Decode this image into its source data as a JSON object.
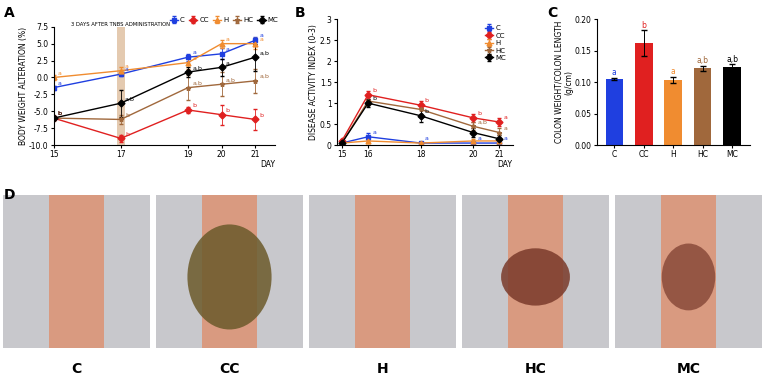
{
  "chart_data": [
    {
      "type": "line",
      "panel_label": "A",
      "x_label": "DAY",
      "y_label": "BODY WEIGHT ALTERATION (%)",
      "x": [
        15,
        17,
        19,
        20,
        21
      ],
      "xlim": [
        15,
        21.6
      ],
      "xticks": [
        15,
        17,
        19,
        20,
        21
      ],
      "ylim": [
        -10,
        7.5
      ],
      "yticks": [
        {
          "value": -10,
          "label": "-10.0"
        },
        {
          "value": -7.5,
          "label": "-7.5"
        },
        {
          "value": -5,
          "label": "-5.0"
        },
        {
          "value": -2.5,
          "label": "-2.5"
        },
        {
          "value": 0,
          "label": "0.0"
        },
        {
          "value": 2.5,
          "label": "2.5"
        },
        {
          "value": 5,
          "label": "5.0"
        },
        {
          "value": 7.5,
          "label": "7.5"
        }
      ],
      "legend": "lower right",
      "annotations": [
        {
          "text": "3 DAYS AFTER TNBS ADMINISTRATION",
          "x": 17
        }
      ],
      "series": [
        {
          "name": "C",
          "color": "#1f3fe0",
          "marker": "square",
          "values": [
            -1.5,
            0.5,
            3.0,
            3.5,
            5.5
          ],
          "errors": [
            0.3,
            0.3,
            0.5,
            0.8,
            0.5
          ],
          "letters": [
            "a",
            "a",
            "a",
            "a",
            "a"
          ]
        },
        {
          "name": "CC",
          "color": "#e02020",
          "marker": "diamond",
          "values": [
            -6.0,
            -9.0,
            -4.8,
            -5.5,
            -6.2
          ],
          "errors": [
            0.3,
            0.5,
            0.5,
            1.5,
            1.5
          ],
          "letters": [
            "b",
            "b",
            "b",
            "b",
            "b"
          ]
        },
        {
          "name": "H",
          "color": "#f08c30",
          "marker": "triangle",
          "values": [
            0.0,
            1.0,
            2.2,
            5.0,
            5.0
          ],
          "errors": [
            0.3,
            0.5,
            1.0,
            0.6,
            0.8
          ],
          "letters": [
            "a",
            "a",
            "a",
            "a",
            "a"
          ]
        },
        {
          "name": "HC",
          "color": "#a0683c",
          "marker": "star",
          "values": [
            -6.0,
            -6.2,
            -1.5,
            -1.0,
            -0.5
          ],
          "errors": [
            0.3,
            0.6,
            1.8,
            1.8,
            1.8
          ],
          "letters": [
            "b",
            "b",
            "a,b",
            "a,b",
            "a,b"
          ]
        },
        {
          "name": "MC",
          "color": "#000000",
          "marker": "diamond",
          "values": [
            -6.0,
            -3.8,
            0.8,
            1.5,
            3.0
          ],
          "errors": [
            0.3,
            2.0,
            0.8,
            1.3,
            2.0
          ],
          "letters": [
            "b",
            "a,b",
            "a,b",
            "a",
            "a,b"
          ]
        }
      ]
    },
    {
      "type": "line",
      "panel_label": "B",
      "x_label": "DAY",
      "y_label": "DISEASE ACTIVITY INDEX (0-3)",
      "x": [
        15,
        16,
        18,
        20,
        21
      ],
      "xlim": [
        14.8,
        21.5
      ],
      "xticks": [
        15,
        16,
        18,
        20,
        21
      ],
      "ylim": [
        0,
        3
      ],
      "yticks": [
        0,
        0.5,
        1,
        1.5,
        2,
        2.5,
        3
      ],
      "legend": "upper right",
      "series": [
        {
          "name": "C",
          "color": "#1f3fe0",
          "marker": "square",
          "values": [
            0.05,
            0.2,
            0.05,
            0.05,
            0.05
          ],
          "errors": [
            0.02,
            0.08,
            0.02,
            0.02,
            0.02
          ],
          "letters": [
            null,
            "a",
            "a",
            "a",
            "a"
          ]
        },
        {
          "name": "CC",
          "color": "#e02020",
          "marker": "diamond",
          "values": [
            0.1,
            1.2,
            0.95,
            0.65,
            0.55
          ],
          "errors": [
            0.05,
            0.1,
            0.1,
            0.1,
            0.1
          ],
          "letters": [
            null,
            "b",
            "b",
            "b",
            "a"
          ]
        },
        {
          "name": "H",
          "color": "#f08c30",
          "marker": "triangle",
          "values": [
            0.05,
            0.1,
            0.05,
            0.1,
            0.1
          ],
          "errors": [
            0.02,
            0.05,
            0.02,
            0.05,
            0.05
          ],
          "letters": [
            null,
            null,
            null,
            null,
            null
          ]
        },
        {
          "name": "HC",
          "color": "#a0683c",
          "marker": "star",
          "values": [
            0.05,
            1.05,
            0.85,
            0.45,
            0.3
          ],
          "errors": [
            0.02,
            0.1,
            0.1,
            0.1,
            0.1
          ],
          "letters": [
            null,
            null,
            null,
            "a,b",
            "a"
          ]
        },
        {
          "name": "MC",
          "color": "#000000",
          "marker": "diamond",
          "values": [
            0.05,
            1.0,
            0.7,
            0.3,
            0.15
          ],
          "errors": [
            0.02,
            0.1,
            0.15,
            0.1,
            0.1
          ],
          "letters": [
            null,
            "b",
            "b",
            null,
            null
          ]
        }
      ]
    },
    {
      "type": "bar",
      "panel_label": "C",
      "y_label": "COLON WEIGHT/COLON LENGTH\n(g/cm)",
      "categories": [
        "C",
        "CC",
        "H",
        "HC",
        "MC"
      ],
      "values": [
        0.105,
        0.162,
        0.103,
        0.122,
        0.124
      ],
      "errors": [
        0.002,
        0.02,
        0.005,
        0.004,
        0.004
      ],
      "letters": [
        "a",
        "b",
        "a",
        "a,b",
        "a,b"
      ],
      "colors": [
        "#1f3fe0",
        "#e02020",
        "#f08c30",
        "#a0683c",
        "#000000"
      ],
      "ylim": [
        0,
        0.2
      ],
      "yticks": [
        {
          "value": 0,
          "label": "0.00"
        },
        {
          "value": 0.05,
          "label": "0.05"
        },
        {
          "value": 0.1,
          "label": "0.10"
        },
        {
          "value": 0.15,
          "label": "0.15"
        },
        {
          "value": 0.2,
          "label": "0.20"
        }
      ]
    }
  ],
  "images": {
    "panel_label": "D",
    "labels": [
      "C",
      "CC",
      "H",
      "HC",
      "MC"
    ]
  }
}
